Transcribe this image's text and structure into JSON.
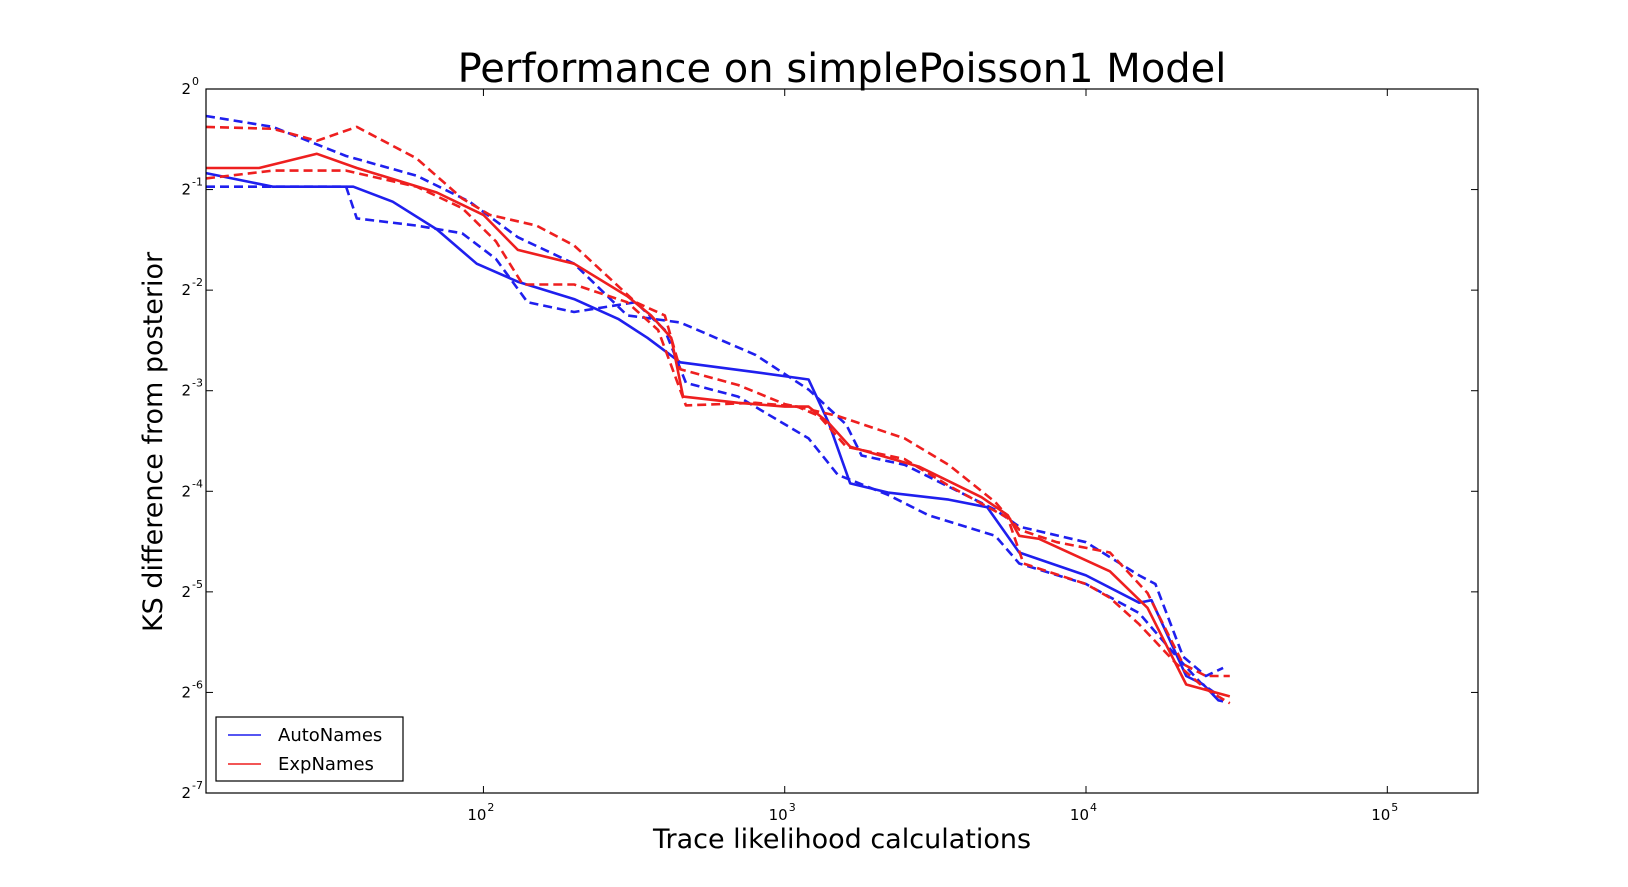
{
  "chart_data": {
    "type": "line",
    "title": "Performance on simplePoisson1 Model",
    "xlabel": "Trace likelihood calculations",
    "ylabel": "KS difference from posterior",
    "x_scale": "log10",
    "y_scale": "log2",
    "xlim": [
      12,
      200000
    ],
    "ylim": [
      0.0078125,
      1
    ],
    "grid": false,
    "legend_position": "lower-left",
    "x_ticks": [
      {
        "value": 100,
        "base": "10",
        "exp": "2"
      },
      {
        "value": 1000,
        "base": "10",
        "exp": "3"
      },
      {
        "value": 10000,
        "base": "10",
        "exp": "4"
      },
      {
        "value": 100000,
        "base": "10",
        "exp": "5"
      }
    ],
    "y_ticks": [
      {
        "value": 1,
        "base": "2",
        "exp": "0"
      },
      {
        "value": 0.5,
        "base": "2",
        "exp": "-1"
      },
      {
        "value": 0.25,
        "base": "2",
        "exp": "-2"
      },
      {
        "value": 0.125,
        "base": "2",
        "exp": "-3"
      },
      {
        "value": 0.0625,
        "base": "2",
        "exp": "-4"
      },
      {
        "value": 0.03125,
        "base": "2",
        "exp": "-5"
      },
      {
        "value": 0.015625,
        "base": "2",
        "exp": "-6"
      },
      {
        "value": 0.0078125,
        "base": "2",
        "exp": "-7"
      }
    ],
    "series": [
      {
        "name": "AutoNames",
        "color": "#1f1fee",
        "style": "solid",
        "points": [
          [
            12,
            0.56
          ],
          [
            20,
            0.51
          ],
          [
            37,
            0.51
          ],
          [
            50,
            0.46
          ],
          [
            70,
            0.38
          ],
          [
            95,
            0.3
          ],
          [
            130,
            0.265
          ],
          [
            200,
            0.235
          ],
          [
            280,
            0.205
          ],
          [
            350,
            0.18
          ],
          [
            450,
            0.152
          ],
          [
            800,
            0.142
          ],
          [
            1200,
            0.135
          ],
          [
            1400,
            0.1
          ],
          [
            1650,
            0.066
          ],
          [
            2200,
            0.062
          ],
          [
            3500,
            0.059
          ],
          [
            4700,
            0.056
          ],
          [
            6000,
            0.041
          ],
          [
            10000,
            0.035
          ],
          [
            15000,
            0.029
          ],
          [
            16500,
            0.0295
          ],
          [
            21500,
            0.0175
          ],
          [
            24500,
            0.0165
          ],
          [
            27500,
            0.0148
          ],
          [
            28500,
            0.0147
          ]
        ]
      },
      {
        "name": "",
        "color": "#1f1fee",
        "style": "dashed",
        "points": [
          [
            12,
            0.83
          ],
          [
            20,
            0.77
          ],
          [
            35,
            0.63
          ],
          [
            60,
            0.55
          ],
          [
            90,
            0.46
          ],
          [
            130,
            0.36
          ],
          [
            200,
            0.3
          ],
          [
            300,
            0.21
          ],
          [
            450,
            0.2
          ],
          [
            800,
            0.16
          ],
          [
            1200,
            0.126
          ],
          [
            1600,
            0.099
          ],
          [
            1800,
            0.08
          ],
          [
            2500,
            0.075
          ],
          [
            5000,
            0.055
          ],
          [
            6000,
            0.049
          ],
          [
            10000,
            0.044
          ],
          [
            15000,
            0.035
          ],
          [
            17000,
            0.033
          ],
          [
            21000,
            0.02
          ],
          [
            25000,
            0.0175
          ],
          [
            28500,
            0.0185
          ]
        ]
      },
      {
        "name": "",
        "color": "#1f1fee",
        "style": "dashed",
        "points": [
          [
            12,
            0.51
          ],
          [
            20,
            0.51
          ],
          [
            35,
            0.51
          ],
          [
            38,
            0.41
          ],
          [
            60,
            0.39
          ],
          [
            85,
            0.37
          ],
          [
            110,
            0.31
          ],
          [
            140,
            0.23
          ],
          [
            200,
            0.215
          ],
          [
            320,
            0.23
          ],
          [
            400,
            0.19
          ],
          [
            470,
            0.132
          ],
          [
            700,
            0.12
          ],
          [
            1200,
            0.09
          ],
          [
            1500,
            0.07
          ],
          [
            2200,
            0.061
          ],
          [
            3000,
            0.053
          ],
          [
            5000,
            0.046
          ],
          [
            6000,
            0.038
          ],
          [
            10000,
            0.033
          ],
          [
            15000,
            0.027
          ],
          [
            20000,
            0.02
          ],
          [
            24000,
            0.0167
          ],
          [
            27000,
            0.0155
          ]
        ]
      },
      {
        "name": "ExpNames",
        "color": "#ee1f1f",
        "style": "solid",
        "points": [
          [
            12,
            0.58
          ],
          [
            18,
            0.58
          ],
          [
            28,
            0.64
          ],
          [
            38,
            0.58
          ],
          [
            70,
            0.49
          ],
          [
            100,
            0.42
          ],
          [
            130,
            0.33
          ],
          [
            200,
            0.3
          ],
          [
            300,
            0.24
          ],
          [
            360,
            0.21
          ],
          [
            420,
            0.18
          ],
          [
            460,
            0.12
          ],
          [
            700,
            0.115
          ],
          [
            1000,
            0.112
          ],
          [
            1200,
            0.112
          ],
          [
            1400,
            0.1
          ],
          [
            1650,
            0.085
          ],
          [
            2800,
            0.074
          ],
          [
            4500,
            0.06
          ],
          [
            5500,
            0.053
          ],
          [
            6000,
            0.046
          ],
          [
            7000,
            0.045
          ],
          [
            12000,
            0.036
          ],
          [
            16000,
            0.028
          ],
          [
            21500,
            0.0165
          ],
          [
            30000,
            0.0152
          ]
        ]
      },
      {
        "name": "",
        "color": "#ee1f1f",
        "style": "dashed",
        "points": [
          [
            12,
            0.77
          ],
          [
            20,
            0.76
          ],
          [
            28,
            0.7
          ],
          [
            38,
            0.77
          ],
          [
            60,
            0.62
          ],
          [
            85,
            0.47
          ],
          [
            105,
            0.42
          ],
          [
            150,
            0.39
          ],
          [
            200,
            0.34
          ],
          [
            320,
            0.23
          ],
          [
            400,
            0.21
          ],
          [
            450,
            0.145
          ],
          [
            700,
            0.13
          ],
          [
            1000,
            0.114
          ],
          [
            1200,
            0.11
          ],
          [
            1500,
            0.105
          ],
          [
            2500,
            0.09
          ],
          [
            3500,
            0.075
          ],
          [
            5000,
            0.058
          ],
          [
            6000,
            0.048
          ],
          [
            8000,
            0.044
          ],
          [
            12000,
            0.041
          ],
          [
            16000,
            0.031
          ],
          [
            21000,
            0.019
          ],
          [
            25000,
            0.0175
          ],
          [
            30000,
            0.0175
          ]
        ]
      },
      {
        "name": "",
        "color": "#ee1f1f",
        "style": "dashed",
        "points": [
          [
            12,
            0.54
          ],
          [
            20,
            0.57
          ],
          [
            35,
            0.57
          ],
          [
            60,
            0.51
          ],
          [
            85,
            0.44
          ],
          [
            110,
            0.35
          ],
          [
            135,
            0.26
          ],
          [
            200,
            0.26
          ],
          [
            300,
            0.23
          ],
          [
            380,
            0.19
          ],
          [
            470,
            0.113
          ],
          [
            800,
            0.115
          ],
          [
            1100,
            0.112
          ],
          [
            1300,
            0.105
          ],
          [
            1600,
            0.085
          ],
          [
            2500,
            0.078
          ],
          [
            3500,
            0.065
          ],
          [
            5500,
            0.052
          ],
          [
            6200,
            0.038
          ],
          [
            10000,
            0.033
          ],
          [
            12000,
            0.03
          ],
          [
            15000,
            0.025
          ],
          [
            20000,
            0.019
          ],
          [
            25000,
            0.016
          ],
          [
            30000,
            0.0145
          ]
        ]
      }
    ]
  }
}
